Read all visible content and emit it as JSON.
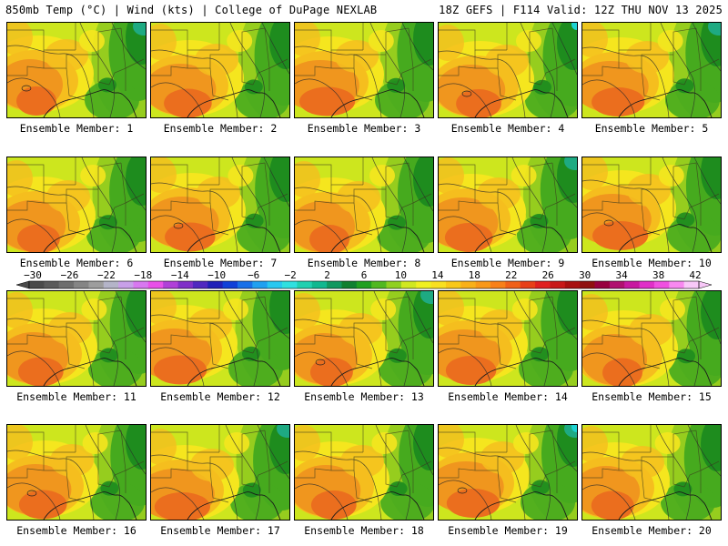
{
  "header": {
    "left": "850mb Temp (°C) | Wind (kts) | College of DuPage NEXLAB",
    "right": "18Z GEFS | F114 Valid: 12Z THU NOV 13 2025"
  },
  "members": [
    "Ensemble Member: 1",
    "Ensemble Member: 2",
    "Ensemble Member: 3",
    "Ensemble Member: 4",
    "Ensemble Member: 5",
    "Ensemble Member: 6",
    "Ensemble Member: 7",
    "Ensemble Member: 8",
    "Ensemble Member: 9",
    "Ensemble Member: 10",
    "Ensemble Member: 11",
    "Ensemble Member: 12",
    "Ensemble Member: 13",
    "Ensemble Member: 14",
    "Ensemble Member: 15",
    "Ensemble Member: 16",
    "Ensemble Member: 17",
    "Ensemble Member: 18",
    "Ensemble Member: 19",
    "Ensemble Member: 20"
  ],
  "colorbar": {
    "ticks": [
      "−30",
      "−26",
      "−22",
      "−18",
      "−14",
      "−10",
      "−6",
      "−2",
      "2",
      "6",
      "10",
      "14",
      "18",
      "22",
      "26",
      "30",
      "34",
      "38",
      "42"
    ],
    "colors": [
      "#4a4a4a",
      "#5a5a5a",
      "#6e6e6e",
      "#858585",
      "#9d9d9d",
      "#b4b4c8",
      "#c8a0e8",
      "#d878f0",
      "#e850e8",
      "#b040d8",
      "#8030c8",
      "#5028c0",
      "#2020b8",
      "#1040d8",
      "#1870e8",
      "#20a0f0",
      "#28c8f0",
      "#30e0e0",
      "#20d0b0",
      "#10b890",
      "#109860",
      "#108030",
      "#20a020",
      "#50b820",
      "#90d020",
      "#d0e820",
      "#f0f020",
      "#f8e020",
      "#f8c818",
      "#f8b018",
      "#f89818",
      "#f88018",
      "#f06018",
      "#e84018",
      "#e02020",
      "#c81818",
      "#a81010",
      "#901010",
      "#980040",
      "#b01070",
      "#c818a0",
      "#e030c8",
      "#f050e0",
      "#f888f0",
      "#f8c8f8"
    ],
    "palette": {
      "dark_green": "#1e8c1e",
      "green": "#46aa1e",
      "lime": "#96cd1e",
      "yellow_green": "#cde61e",
      "yellow": "#f5e61e",
      "light_orange": "#f5be1e",
      "orange": "#f0961e",
      "red_orange": "#eb6e1e",
      "teal": "#1eaa82",
      "cyan": "#1ed2d2"
    }
  }
}
